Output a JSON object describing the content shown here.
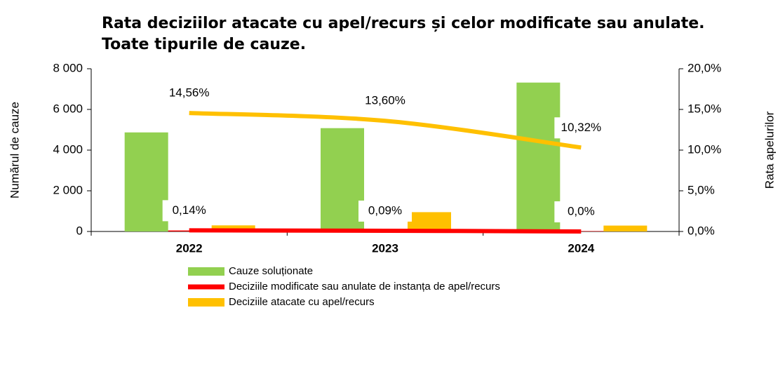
{
  "chart_data": {
    "type": "bar",
    "title": [
      "Rata deciziilor atacate cu apel/recurs și celor modificate sau anulate.",
      "Toate tipurile de cauze."
    ],
    "y_label": "Numărul de cauze",
    "y2_label": "Rata apelurilor",
    "categories": [
      "2022",
      "2023",
      "2024"
    ],
    "ylim": [
      0,
      8000
    ],
    "yticks": [
      0,
      {
        "value": 2000,
        "label": "2 000"
      },
      {
        "value": 4000,
        "label": "4 000"
      },
      {
        "value": 6000,
        "label": "6 000"
      },
      {
        "value": 8000,
        "label": "8 000"
      }
    ],
    "y2lim": [
      0,
      20
    ],
    "y2ticks": [
      {
        "value": 0,
        "label": "0,0%"
      },
      {
        "value": 5,
        "label": "5,0%"
      },
      {
        "value": 10,
        "label": "10,0%"
      },
      {
        "value": 15,
        "label": "15,0%"
      },
      {
        "value": 20,
        "label": "20,0%"
      }
    ],
    "series": [
      {
        "name": "Cauze soluționate",
        "color": "#92d050",
        "values": [
          4870,
          5080,
          7320
        ]
      },
      {
        "name": "Deciziile modificate sau anulate de instanța de apel/recurs",
        "color": "#ff0000",
        "values": [
          50,
          60,
          20
        ]
      },
      {
        "name": "Deciziile atacate cu apel/recurs",
        "color": "#ffc000",
        "values": [
          300,
          950,
          290
        ]
      }
    ],
    "lines": [
      {
        "type": "line",
        "axis": "y2",
        "color": "#ffc000",
        "values": [
          14.56,
          13.6,
          10.32
        ],
        "value_labels": [
          "14,56%",
          "13,60%",
          "10,32%"
        ]
      },
      {
        "type": "line",
        "axis": "y2",
        "color": "#ff0000",
        "values": [
          0.14,
          0.09,
          0.0
        ],
        "value_labels": [
          "0,14%",
          "0,09%",
          "0,0%"
        ]
      }
    ]
  }
}
